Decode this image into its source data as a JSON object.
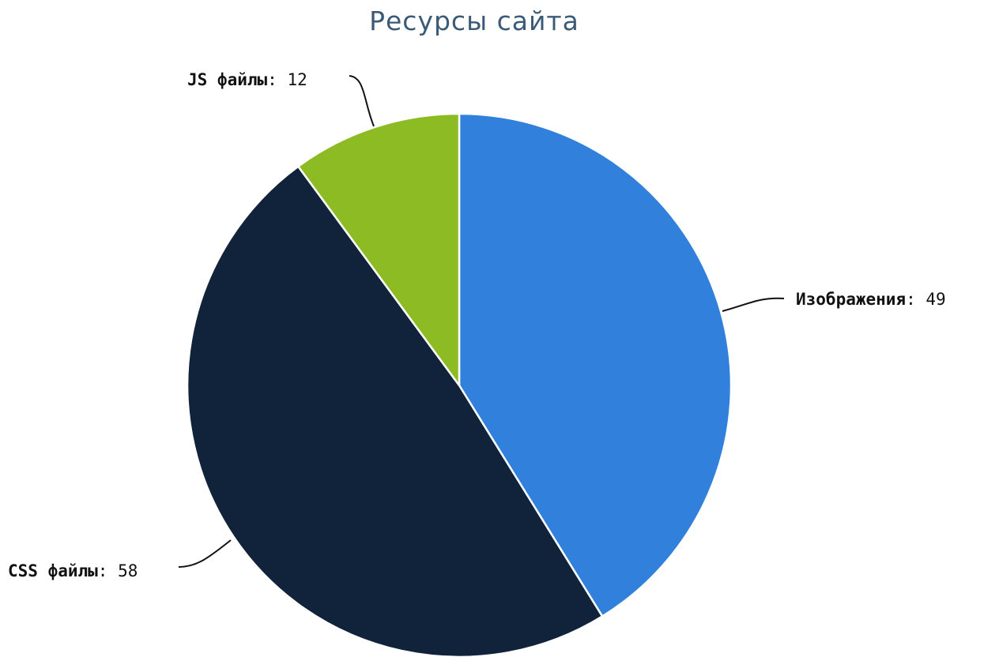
{
  "chart_data": {
    "type": "pie",
    "title": "Ресурсы сайта",
    "slices": [
      {
        "name": "Изображения",
        "value": 49,
        "color": "#3180db"
      },
      {
        "name": "CSS файлы",
        "value": 58,
        "color": "#10233a"
      },
      {
        "name": "JS файлы",
        "value": 12,
        "color": "#8dbb24"
      }
    ]
  }
}
